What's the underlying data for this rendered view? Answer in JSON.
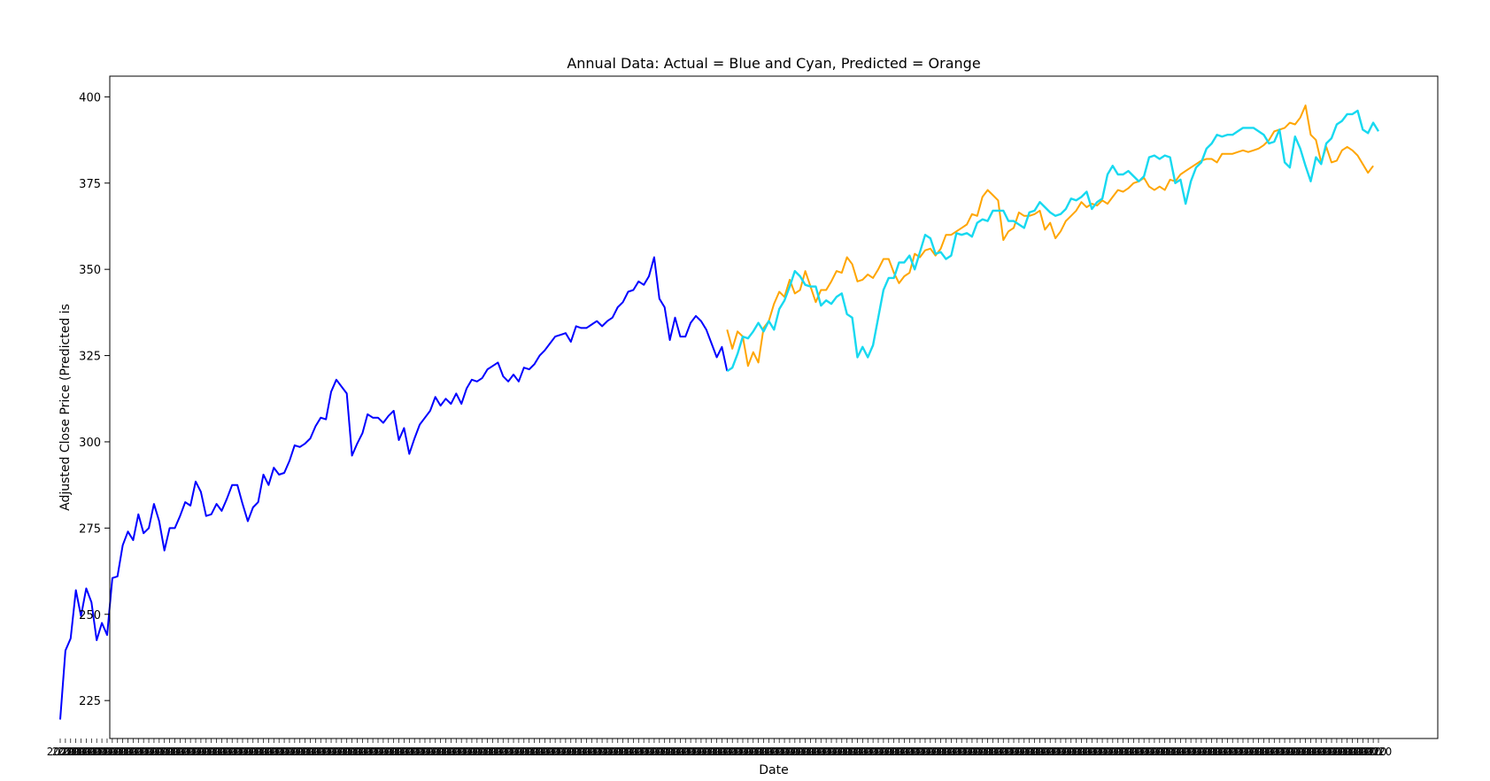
{
  "chart_data": {
    "type": "line",
    "title": "Annual Data: Actual = Blue and Cyan, Predicted = Orange",
    "xlabel": "Date",
    "ylabel": "Adjusted Close Price (Predicted is",
    "ylim": [
      214,
      406
    ],
    "yticks": [
      225,
      250,
      275,
      300,
      325,
      350,
      375,
      400
    ],
    "x_tick_labels": "overlapping illegible date labels",
    "grid": false,
    "legend": "none",
    "series": [
      {
        "color": "#0000ff",
        "role": "actual-training",
        "x_start": 0,
        "values": [
          219.5,
          239.5,
          243,
          257,
          249.5,
          257.5,
          253.5,
          242.5,
          247.5,
          244,
          260.5,
          261,
          270,
          274,
          271.5,
          279,
          273.5,
          275,
          282,
          277,
          268.5,
          275,
          275,
          278.5,
          282.5,
          281.5,
          288.5,
          285.5,
          278.5,
          279,
          282,
          280,
          283.5,
          287.5,
          287.5,
          282,
          277,
          281,
          282.5,
          290.5,
          287.5,
          292.5,
          290.5,
          291,
          294.5,
          299,
          298.5,
          299.5,
          301,
          304.5,
          307,
          306.5,
          314.5,
          318,
          316,
          314,
          296,
          299.5,
          302.5,
          308,
          307,
          307,
          305.5,
          307.5,
          309,
          300.5,
          304,
          296.5,
          301,
          305,
          307,
          309,
          313,
          310.5,
          312.5,
          311,
          314,
          311,
          315.5,
          318,
          317.5,
          318.5,
          321,
          322,
          323,
          319,
          317.5,
          319.5,
          317.5,
          321.5,
          321,
          322.5,
          325,
          326.5,
          328.5,
          330.5,
          331,
          331.5,
          329,
          333.5,
          333,
          333,
          334,
          335,
          333.5,
          335,
          336,
          339,
          340.5,
          343.5,
          344,
          346.5,
          345.5,
          348,
          353.5,
          341.5,
          339,
          329.5,
          336,
          330.5,
          330.5,
          334.5,
          336.5,
          335,
          332.5,
          328.5,
          324.5,
          327.5,
          320.5
        ]
      },
      {
        "color": "#ffa500",
        "role": "predicted",
        "x_start": 128,
        "values": [
          332.5,
          327,
          332,
          330.5,
          322,
          326,
          323,
          333,
          335,
          340,
          343.5,
          342,
          347,
          343,
          344,
          349.5,
          345,
          340.5,
          344,
          344,
          346.5,
          349.5,
          349,
          353.5,
          351.5,
          346.5,
          347,
          348.5,
          347.5,
          350,
          353,
          353,
          349,
          346,
          348,
          349,
          354.5,
          353.5,
          355.5,
          356,
          354,
          356,
          360,
          360,
          361,
          362,
          363,
          366,
          365.5,
          371,
          373,
          371.5,
          370,
          358.5,
          361,
          362,
          366.5,
          365.5,
          365.5,
          366,
          367,
          361.5,
          363.5,
          359,
          361,
          364,
          365.5,
          367,
          369.5,
          368,
          369,
          368.5,
          370,
          369,
          371,
          373,
          372.5,
          373.5,
          375,
          375.5,
          376.5,
          374,
          373,
          374,
          373,
          376,
          375.5,
          377.5,
          378.5,
          379.5,
          380.5,
          381.5,
          382,
          382,
          381,
          383.5,
          383.5,
          383.5,
          384,
          384.5,
          384,
          384.5,
          385,
          386,
          387.5,
          390,
          390.5,
          391,
          392.5,
          392,
          394,
          397.5,
          389,
          387.5,
          381,
          385.5,
          381,
          381.5,
          384.5,
          385.5,
          384.5,
          383,
          380.5,
          378,
          380
        ]
      },
      {
        "color": "#17d9f0",
        "role": "actual-test",
        "x_start": 128,
        "values": [
          320.5,
          321.5,
          325.5,
          330.5,
          330,
          332,
          334.5,
          332,
          335,
          332.5,
          338.5,
          341,
          345,
          349.5,
          348,
          345.5,
          345,
          345,
          339.5,
          341,
          340,
          342,
          343,
          337,
          336,
          324.5,
          327.5,
          324.5,
          328,
          336,
          344,
          347.5,
          347.5,
          352,
          352,
          354,
          350,
          355,
          360,
          359,
          354.5,
          355,
          353,
          354,
          360.5,
          360,
          360.5,
          359.5,
          363.5,
          364.5,
          364,
          367,
          367,
          367,
          364,
          364,
          363,
          362,
          366.5,
          367,
          369.5,
          368,
          366.5,
          365.5,
          366,
          367.5,
          370.5,
          370,
          371,
          372.5,
          367.5,
          369.5,
          370.5,
          377.5,
          380,
          377.5,
          377.5,
          378.5,
          377,
          375.5,
          377,
          382.5,
          383,
          382,
          383,
          382.5,
          375,
          376,
          369,
          375.5,
          379.5,
          381,
          385,
          386.5,
          389,
          388.5,
          389,
          389,
          390,
          391,
          391,
          391,
          390,
          389,
          386.5,
          387,
          390.5,
          381,
          379.5,
          388.5,
          385,
          380,
          375.5,
          382.5,
          380.5,
          386.5,
          388,
          392,
          393,
          395,
          395,
          396,
          390.5,
          389.5,
          392.5,
          390
        ]
      }
    ]
  }
}
